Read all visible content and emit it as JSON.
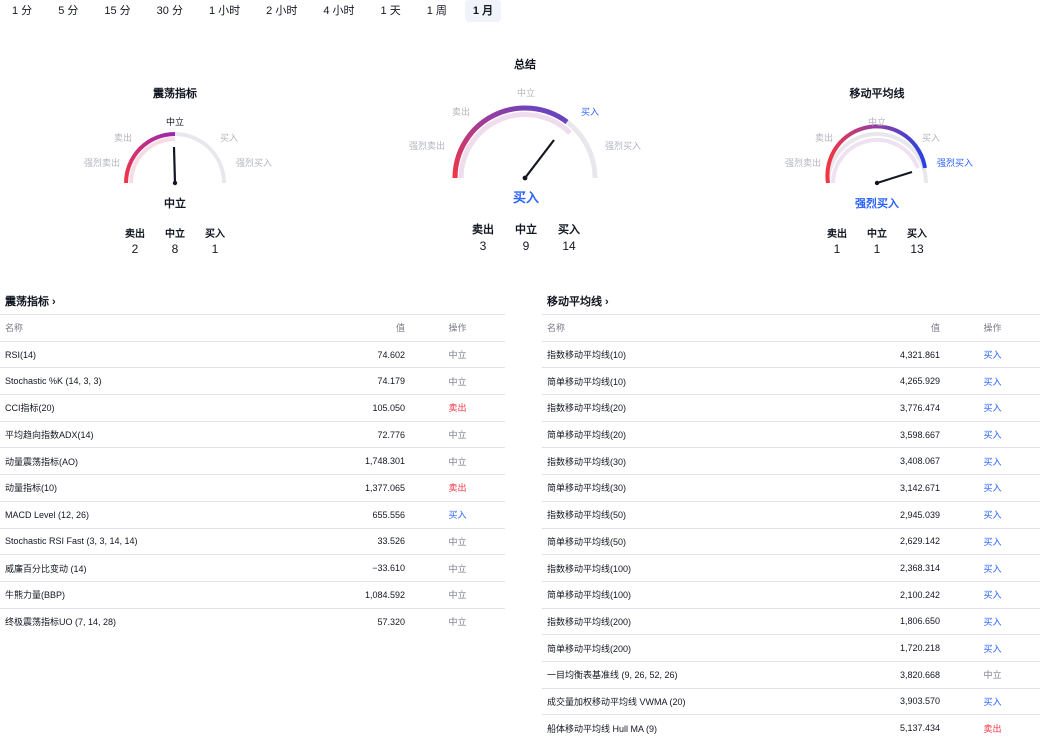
{
  "timeframes": {
    "items": [
      "1 分",
      "5 分",
      "15 分",
      "30 分",
      "1 小时",
      "2 小时",
      "4 小时",
      "1 天",
      "1 周",
      "1 月"
    ],
    "active": "1 月"
  },
  "gauges": {
    "oscillators": {
      "title": "震荡指标",
      "labels": {
        "strong_sell": "强烈卖出",
        "sell": "卖出",
        "neutral": "中立",
        "buy": "买入",
        "strong_buy": "强烈买入"
      },
      "result": "中立",
      "counts": [
        {
          "label": "卖出",
          "value": "2"
        },
        {
          "label": "中立",
          "value": "8"
        },
        {
          "label": "买入",
          "value": "1"
        }
      ]
    },
    "summary": {
      "title": "总结",
      "labels": {
        "strong_sell": "强烈卖出",
        "sell": "卖出",
        "neutral": "中立",
        "buy": "买入",
        "strong_buy": "强烈买入"
      },
      "result": "买入",
      "counts": [
        {
          "label": "卖出",
          "value": "3"
        },
        {
          "label": "中立",
          "value": "9"
        },
        {
          "label": "买入",
          "value": "14"
        }
      ]
    },
    "moving_averages": {
      "title": "移动平均线",
      "labels": {
        "strong_sell": "强烈卖出",
        "sell": "卖出",
        "neutral": "中立",
        "buy": "买入",
        "strong_buy": "强烈买入"
      },
      "result": "强烈买入",
      "counts": [
        {
          "label": "卖出",
          "value": "1"
        },
        {
          "label": "中立",
          "value": "1"
        },
        {
          "label": "买入",
          "value": "13"
        }
      ]
    }
  },
  "colors": {
    "sell": "#f23645",
    "buy": "#2962ff",
    "neutral": "#787b86",
    "arc_track": "#e8e8ec"
  },
  "oscillators_table": {
    "title": "震荡指标",
    "chevron": "›",
    "headers": {
      "name": "名称",
      "value": "值",
      "action": "操作"
    },
    "rows": [
      {
        "name": "RSI(14)",
        "value": "74.602",
        "action": "中立",
        "type": "neutral"
      },
      {
        "name": "Stochastic %K (14, 3, 3)",
        "value": "74.179",
        "action": "中立",
        "type": "neutral"
      },
      {
        "name": "CCI指标(20)",
        "value": "105.050",
        "action": "卖出",
        "type": "sell"
      },
      {
        "name": "平均趋向指数ADX(14)",
        "value": "72.776",
        "action": "中立",
        "type": "neutral"
      },
      {
        "name": "动量震荡指标(AO)",
        "value": "1,748.301",
        "action": "中立",
        "type": "neutral"
      },
      {
        "name": "动量指标(10)",
        "value": "1,377.065",
        "action": "卖出",
        "type": "sell"
      },
      {
        "name": "MACD Level (12, 26)",
        "value": "655.556",
        "action": "买入",
        "type": "buy"
      },
      {
        "name": "Stochastic RSI Fast (3, 3, 14, 14)",
        "value": "33.526",
        "action": "中立",
        "type": "neutral"
      },
      {
        "name": "威廉百分比变动 (14)",
        "value": "−33.610",
        "action": "中立",
        "type": "neutral"
      },
      {
        "name": "牛熊力量(BBP)",
        "value": "1,084.592",
        "action": "中立",
        "type": "neutral"
      },
      {
        "name": "终极震荡指标UO (7, 14, 28)",
        "value": "57.320",
        "action": "中立",
        "type": "neutral"
      }
    ]
  },
  "ma_table": {
    "title": "移动平均线",
    "chevron": "›",
    "headers": {
      "name": "名称",
      "value": "值",
      "action": "操作"
    },
    "rows": [
      {
        "name": "指数移动平均线(10)",
        "value": "4,321.861",
        "action": "买入",
        "type": "buy"
      },
      {
        "name": "简单移动平均线(10)",
        "value": "4,265.929",
        "action": "买入",
        "type": "buy"
      },
      {
        "name": "指数移动平均线(20)",
        "value": "3,776.474",
        "action": "买入",
        "type": "buy"
      },
      {
        "name": "简单移动平均线(20)",
        "value": "3,598.667",
        "action": "买入",
        "type": "buy"
      },
      {
        "name": "指数移动平均线(30)",
        "value": "3,408.067",
        "action": "买入",
        "type": "buy"
      },
      {
        "name": "简单移动平均线(30)",
        "value": "3,142.671",
        "action": "买入",
        "type": "buy"
      },
      {
        "name": "指数移动平均线(50)",
        "value": "2,945.039",
        "action": "买入",
        "type": "buy"
      },
      {
        "name": "简单移动平均线(50)",
        "value": "2,629.142",
        "action": "买入",
        "type": "buy"
      },
      {
        "name": "指数移动平均线(100)",
        "value": "2,368.314",
        "action": "买入",
        "type": "buy"
      },
      {
        "name": "简单移动平均线(100)",
        "value": "2,100.242",
        "action": "买入",
        "type": "buy"
      },
      {
        "name": "指数移动平均线(200)",
        "value": "1,806.650",
        "action": "买入",
        "type": "buy"
      },
      {
        "name": "简单移动平均线(200)",
        "value": "1,720.218",
        "action": "买入",
        "type": "buy"
      },
      {
        "name": "一目均衡表基准线 (9, 26, 52, 26)",
        "value": "3,820.668",
        "action": "中立",
        "type": "neutral"
      },
      {
        "name": "成交量加权移动平均线 VWMA (20)",
        "value": "3,903.570",
        "action": "买入",
        "type": "buy"
      },
      {
        "name": "船体移动平均线 Hull MA (9)",
        "value": "5,137.434",
        "action": "卖出",
        "type": "sell"
      }
    ]
  }
}
